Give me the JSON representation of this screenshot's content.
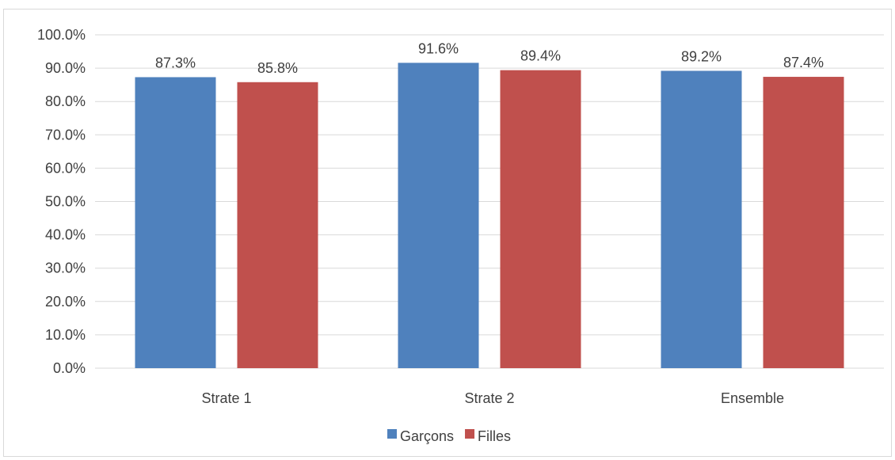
{
  "chart_data": {
    "type": "bar",
    "title": "",
    "xlabel": "",
    "ylabel": "",
    "categories": [
      "Strate 1",
      "Strate 2",
      "Ensemble"
    ],
    "series": [
      {
        "name": "Garçons",
        "values": [
          87.3,
          91.6,
          89.2
        ],
        "color": "#4f81bd",
        "labels": [
          "87.3%",
          "91.6%",
          "89.2%"
        ]
      },
      {
        "name": "Filles",
        "values": [
          85.8,
          89.4,
          87.4
        ],
        "color": "#c0504d",
        "labels": [
          "85.8%",
          "89.4%",
          "87.4%"
        ]
      }
    ],
    "ylim": [
      0,
      100
    ],
    "yticks": [
      0,
      10,
      20,
      30,
      40,
      50,
      60,
      70,
      80,
      90,
      100
    ],
    "ytick_labels": [
      "0.0%",
      "10.0%",
      "20.0%",
      "30.0%",
      "40.0%",
      "50.0%",
      "60.0%",
      "70.0%",
      "80.0%",
      "90.0%",
      "100.0%"
    ],
    "grid": true,
    "legend_position": "bottom",
    "gridline_color": "#d9d9d9"
  }
}
